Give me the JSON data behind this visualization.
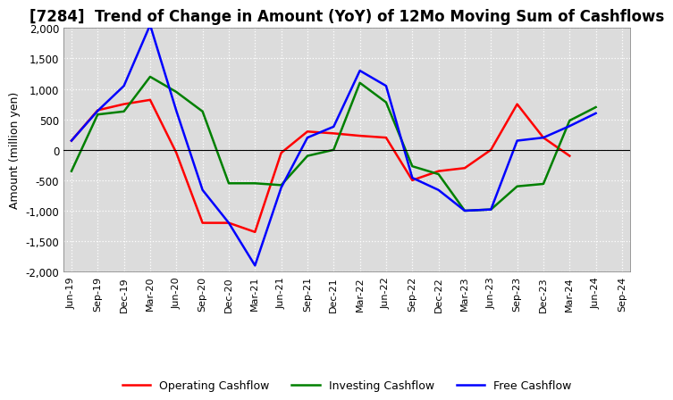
{
  "title": "[7284]  Trend of Change in Amount (YoY) of 12Mo Moving Sum of Cashflows",
  "ylabel": "Amount (million yen)",
  "x_labels": [
    "Jun-19",
    "Sep-19",
    "Dec-19",
    "Mar-20",
    "Jun-20",
    "Sep-20",
    "Dec-20",
    "Mar-21",
    "Jun-21",
    "Sep-21",
    "Dec-21",
    "Mar-22",
    "Jun-22",
    "Sep-22",
    "Dec-22",
    "Mar-23",
    "Jun-23",
    "Sep-23",
    "Dec-23",
    "Mar-24",
    "Jun-24",
    "Sep-24"
  ],
  "operating": [
    150,
    650,
    750,
    820,
    -50,
    -1200,
    -1200,
    -1350,
    -50,
    300,
    270,
    230,
    200,
    -500,
    -350,
    -300,
    0,
    750,
    200,
    -100,
    null,
    null
  ],
  "investing": [
    -350,
    580,
    630,
    1200,
    950,
    630,
    -550,
    -550,
    -580,
    -100,
    0,
    1100,
    780,
    -270,
    -400,
    -1000,
    -980,
    -600,
    -560,
    480,
    700,
    null
  ],
  "free": [
    150,
    640,
    1050,
    2050,
    640,
    -660,
    -1200,
    -1900,
    -620,
    200,
    380,
    1300,
    1050,
    -460,
    -660,
    -1000,
    -980,
    150,
    200,
    390,
    600,
    null
  ],
  "ylim": [
    -2000,
    2000
  ],
  "yticks": [
    -2000,
    -1500,
    -1000,
    -500,
    0,
    500,
    1000,
    1500,
    2000
  ],
  "operating_color": "#ff0000",
  "investing_color": "#008000",
  "free_color": "#0000ff",
  "line_width": 1.8,
  "bg_color": "#ffffff",
  "plot_bg_color": "#dcdcdc",
  "grid_color": "#ffffff",
  "title_fontsize": 12,
  "legend_labels": [
    "Operating Cashflow",
    "Investing Cashflow",
    "Free Cashflow"
  ]
}
